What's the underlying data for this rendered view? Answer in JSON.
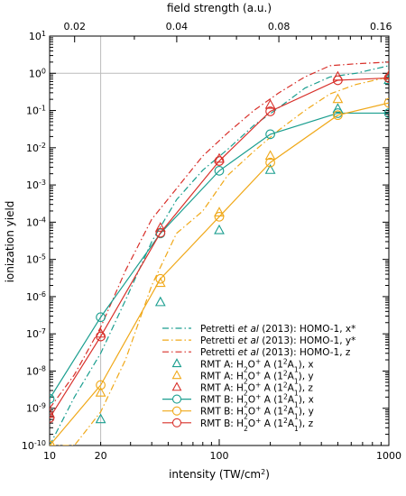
{
  "chart_data": {
    "type": "line",
    "xlabel": "intensity (TW/cm²)",
    "x2label": "field strength (a.u.)",
    "ylabel": "ionization yield",
    "xscale": "log",
    "yscale": "log",
    "xlim": [
      10,
      1000
    ],
    "ylim": [
      1e-10,
      10
    ],
    "grid": "reference lines at x=20 and y=1",
    "legend_position": "bottom-right",
    "x_ticks": [
      {
        "value": 10,
        "label": "10"
      },
      {
        "value": 20,
        "label": "20"
      },
      {
        "value": 100,
        "label": "100"
      },
      {
        "value": 1000,
        "label": "1000"
      }
    ],
    "x2_ticks": [
      {
        "value": 0.02,
        "label": "0.02"
      },
      {
        "value": 0.04,
        "label": "0.04"
      },
      {
        "value": 0.08,
        "label": "0.08"
      },
      {
        "value": 0.16,
        "label": "0.16"
      }
    ],
    "y_ticks": [
      {
        "exp": 1,
        "base": "10",
        "sup": "1"
      },
      {
        "exp": 0,
        "base": "10",
        "sup": "0"
      },
      {
        "exp": -1,
        "base": "10",
        "sup": "-1"
      },
      {
        "exp": -2,
        "base": "10",
        "sup": "-2"
      },
      {
        "exp": -3,
        "base": "10",
        "sup": "-3"
      },
      {
        "exp": -4,
        "base": "10",
        "sup": "-4"
      },
      {
        "exp": -5,
        "base": "10",
        "sup": "-5"
      },
      {
        "exp": -6,
        "base": "10",
        "sup": "-6"
      },
      {
        "exp": -7,
        "base": "10",
        "sup": "-7"
      },
      {
        "exp": -8,
        "base": "10",
        "sup": "-8"
      },
      {
        "exp": -9,
        "base": "10",
        "sup": "-9"
      },
      {
        "exp": -10,
        "base": "10",
        "sup": "-10"
      }
    ],
    "colors": {
      "teal": "#1a9e8f",
      "orange": "#f0a818",
      "red": "#d8302a"
    },
    "series": [
      {
        "name": "Petretti et al (2013): HOMO-1, x*",
        "style": "dashdot",
        "color": "#1a9e8f",
        "x": [
          10,
          14,
          20,
          28,
          40,
          56,
          80,
          112,
          160,
          225,
          320,
          450,
          640,
          1000
        ],
        "y": [
          1e-10,
          2e-09,
          3e-08,
          8e-07,
          3e-05,
          0.0004,
          0.0025,
          0.009,
          0.04,
          0.12,
          0.4,
          0.8,
          1.0,
          1.6
        ]
      },
      {
        "name": "Petretti et al (2013): HOMO-1, y*",
        "style": "dashdot",
        "color": "#f0a818",
        "x": [
          10,
          14,
          20,
          28,
          40,
          56,
          80,
          112,
          160,
          225,
          320,
          450,
          640,
          1000
        ],
        "y": [
          1e-10,
          1e-10,
          8e-10,
          2e-08,
          2e-06,
          5e-05,
          0.0002,
          0.0018,
          0.008,
          0.03,
          0.1,
          0.28,
          0.5,
          0.8
        ]
      },
      {
        "name": "Petretti et al (2013): HOMO-1, z",
        "style": "dashdot",
        "color": "#d8302a",
        "x": [
          10,
          14,
          20,
          28,
          40,
          56,
          80,
          112,
          160,
          225,
          320,
          450,
          640,
          1000
        ],
        "y": [
          1e-09,
          8e-09,
          1.5e-07,
          5e-06,
          0.00012,
          0.0008,
          0.006,
          0.025,
          0.1,
          0.3,
          0.8,
          1.6,
          1.8,
          2.0
        ]
      },
      {
        "name": "RMT A: H₂O⁺ A (1²A₁), x",
        "style": "triangle",
        "color": "#1a9e8f",
        "x": [
          20,
          45,
          100,
          200,
          500,
          1000
        ],
        "y": [
          5e-10,
          7e-07,
          6e-05,
          0.0025,
          0.11,
          0.65
        ]
      },
      {
        "name": "RMT A: H₂O⁺ A (1²A₁), y",
        "style": "triangle",
        "color": "#f0a818",
        "x": [
          20,
          45,
          100,
          200,
          500,
          1000
        ],
        "y": [
          2.6e-09,
          2.3e-06,
          0.00018,
          0.006,
          0.2,
          0.85
        ]
      },
      {
        "name": "RMT A: H₂O⁺ A (1²A₁), z",
        "style": "triangle",
        "color": "#d8302a",
        "x": [
          10,
          20,
          45,
          100,
          200,
          500,
          1000
        ],
        "y": [
          7e-10,
          1e-07,
          7e-05,
          0.005,
          0.14,
          0.8,
          0.85
        ]
      },
      {
        "name": "RMT B: H₂O⁺ A (1²A₁), x",
        "style": "circle-line",
        "color": "#1a9e8f",
        "x": [
          10,
          20,
          45,
          100,
          200,
          500,
          1000
        ],
        "y": [
          1.8e-09,
          2.8e-07,
          5e-05,
          0.0024,
          0.023,
          0.085,
          0.085
        ]
      },
      {
        "name": "RMT B: H₂O⁺ A (1²A₁), y",
        "style": "circle-line",
        "color": "#f0a818",
        "x": [
          10,
          20,
          45,
          100,
          200,
          500,
          1000
        ],
        "y": [
          1e-10,
          4.2e-09,
          3e-06,
          0.00014,
          0.004,
          0.075,
          0.16
        ]
      },
      {
        "name": "RMT B: H₂O⁺ A (1²A₁), z",
        "style": "circle-line",
        "color": "#d8302a",
        "x": [
          10,
          20,
          45,
          100,
          200,
          500,
          1000
        ],
        "y": [
          5.5e-10,
          8.5e-08,
          5.2e-05,
          0.0044,
          0.095,
          0.65,
          0.75
        ]
      }
    ]
  },
  "legend": [
    {
      "prefix": "Petretti ",
      "italic": "et al",
      "suffix": " (2013): HOMO-1, x*"
    },
    {
      "prefix": "Petretti ",
      "italic": "et al",
      "suffix": " (2013): HOMO-1, y*"
    },
    {
      "prefix": "Petretti ",
      "italic": "et al",
      "suffix": " (2013): HOMO-1, z"
    },
    {
      "prefix": "RMT A: H",
      "sub1": "2",
      "mid": "O",
      "sup1": "+",
      "mid2": " A (1",
      "sup2": "2",
      "mid3": "A",
      "sub2": "1",
      "end": "), x"
    },
    {
      "prefix": "RMT A: H",
      "sub1": "2",
      "mid": "O",
      "sup1": "+",
      "mid2": " A (1",
      "sup2": "2",
      "mid3": "A",
      "sub2": "1",
      "end": "), y"
    },
    {
      "prefix": "RMT A: H",
      "sub1": "2",
      "mid": "O",
      "sup1": "+",
      "mid2": " A (1",
      "sup2": "2",
      "mid3": "A",
      "sub2": "1",
      "end": "), z"
    },
    {
      "prefix": "RMT B: H",
      "sub1": "2",
      "mid": "O",
      "sup1": "+",
      "mid2": " A (1",
      "sup2": "2",
      "mid3": "A",
      "sub2": "1",
      "end": "), x"
    },
    {
      "prefix": "RMT B: H",
      "sub1": "2",
      "mid": "O",
      "sup1": "+",
      "mid2": " A (1",
      "sup2": "2",
      "mid3": "A",
      "sub2": "1",
      "end": "), y"
    },
    {
      "prefix": "RMT B: H",
      "sub1": "2",
      "mid": "O",
      "sup1": "+",
      "mid2": " A (1",
      "sup2": "2",
      "mid3": "A",
      "sub2": "1",
      "end": "), z"
    }
  ]
}
